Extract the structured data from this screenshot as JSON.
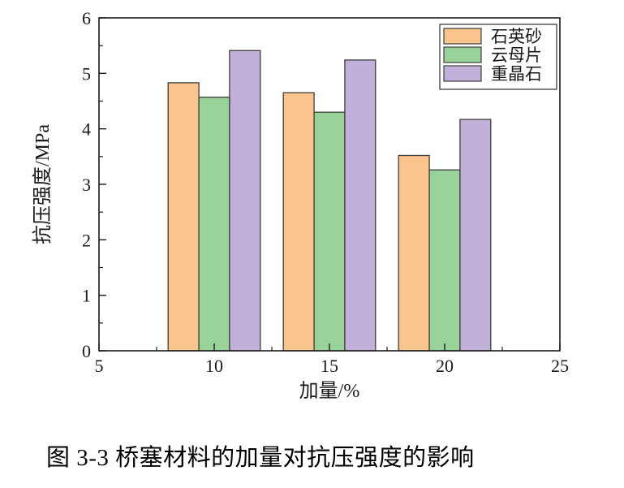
{
  "figure": {
    "caption": "图 3-3  桥塞材料的加量对抗压强度的影响"
  },
  "chart_data": {
    "type": "bar",
    "title": "",
    "xlabel": "加量/%",
    "ylabel": "抗压强度/MPa",
    "xlim": [
      5,
      25
    ],
    "ylim": [
      0,
      6
    ],
    "x_major_ticks": [
      "5",
      "10",
      "15",
      "20",
      "25"
    ],
    "x_major_values": [
      5,
      10,
      15,
      20,
      25
    ],
    "x_minor_step": 2.5,
    "y_major_ticks": [
      "0",
      "1",
      "2",
      "3",
      "4",
      "5",
      "6"
    ],
    "y_major_values": [
      0,
      1,
      2,
      3,
      4,
      5,
      6
    ],
    "y_minor_step": 0.5,
    "grid": false,
    "legend_position": "top-right",
    "categories": [
      10,
      15,
      20
    ],
    "bar_width_units": 1.333,
    "series": [
      {
        "name": "石英砂",
        "color": "#FAC48D",
        "values": [
          4.83,
          4.65,
          3.52
        ]
      },
      {
        "name": "云母片",
        "color": "#9AD399",
        "values": [
          4.57,
          4.3,
          3.26
        ]
      },
      {
        "name": "重晶石",
        "color": "#C1B1DA",
        "values": [
          5.41,
          5.24,
          4.17
        ]
      }
    ],
    "bar_edge_color": "#3d3d3d",
    "axis_color": "#1a1a1a",
    "text_color": "#1a1a1a",
    "legend_border_color": "#4a4a4a",
    "background_color": "#ffffff"
  }
}
